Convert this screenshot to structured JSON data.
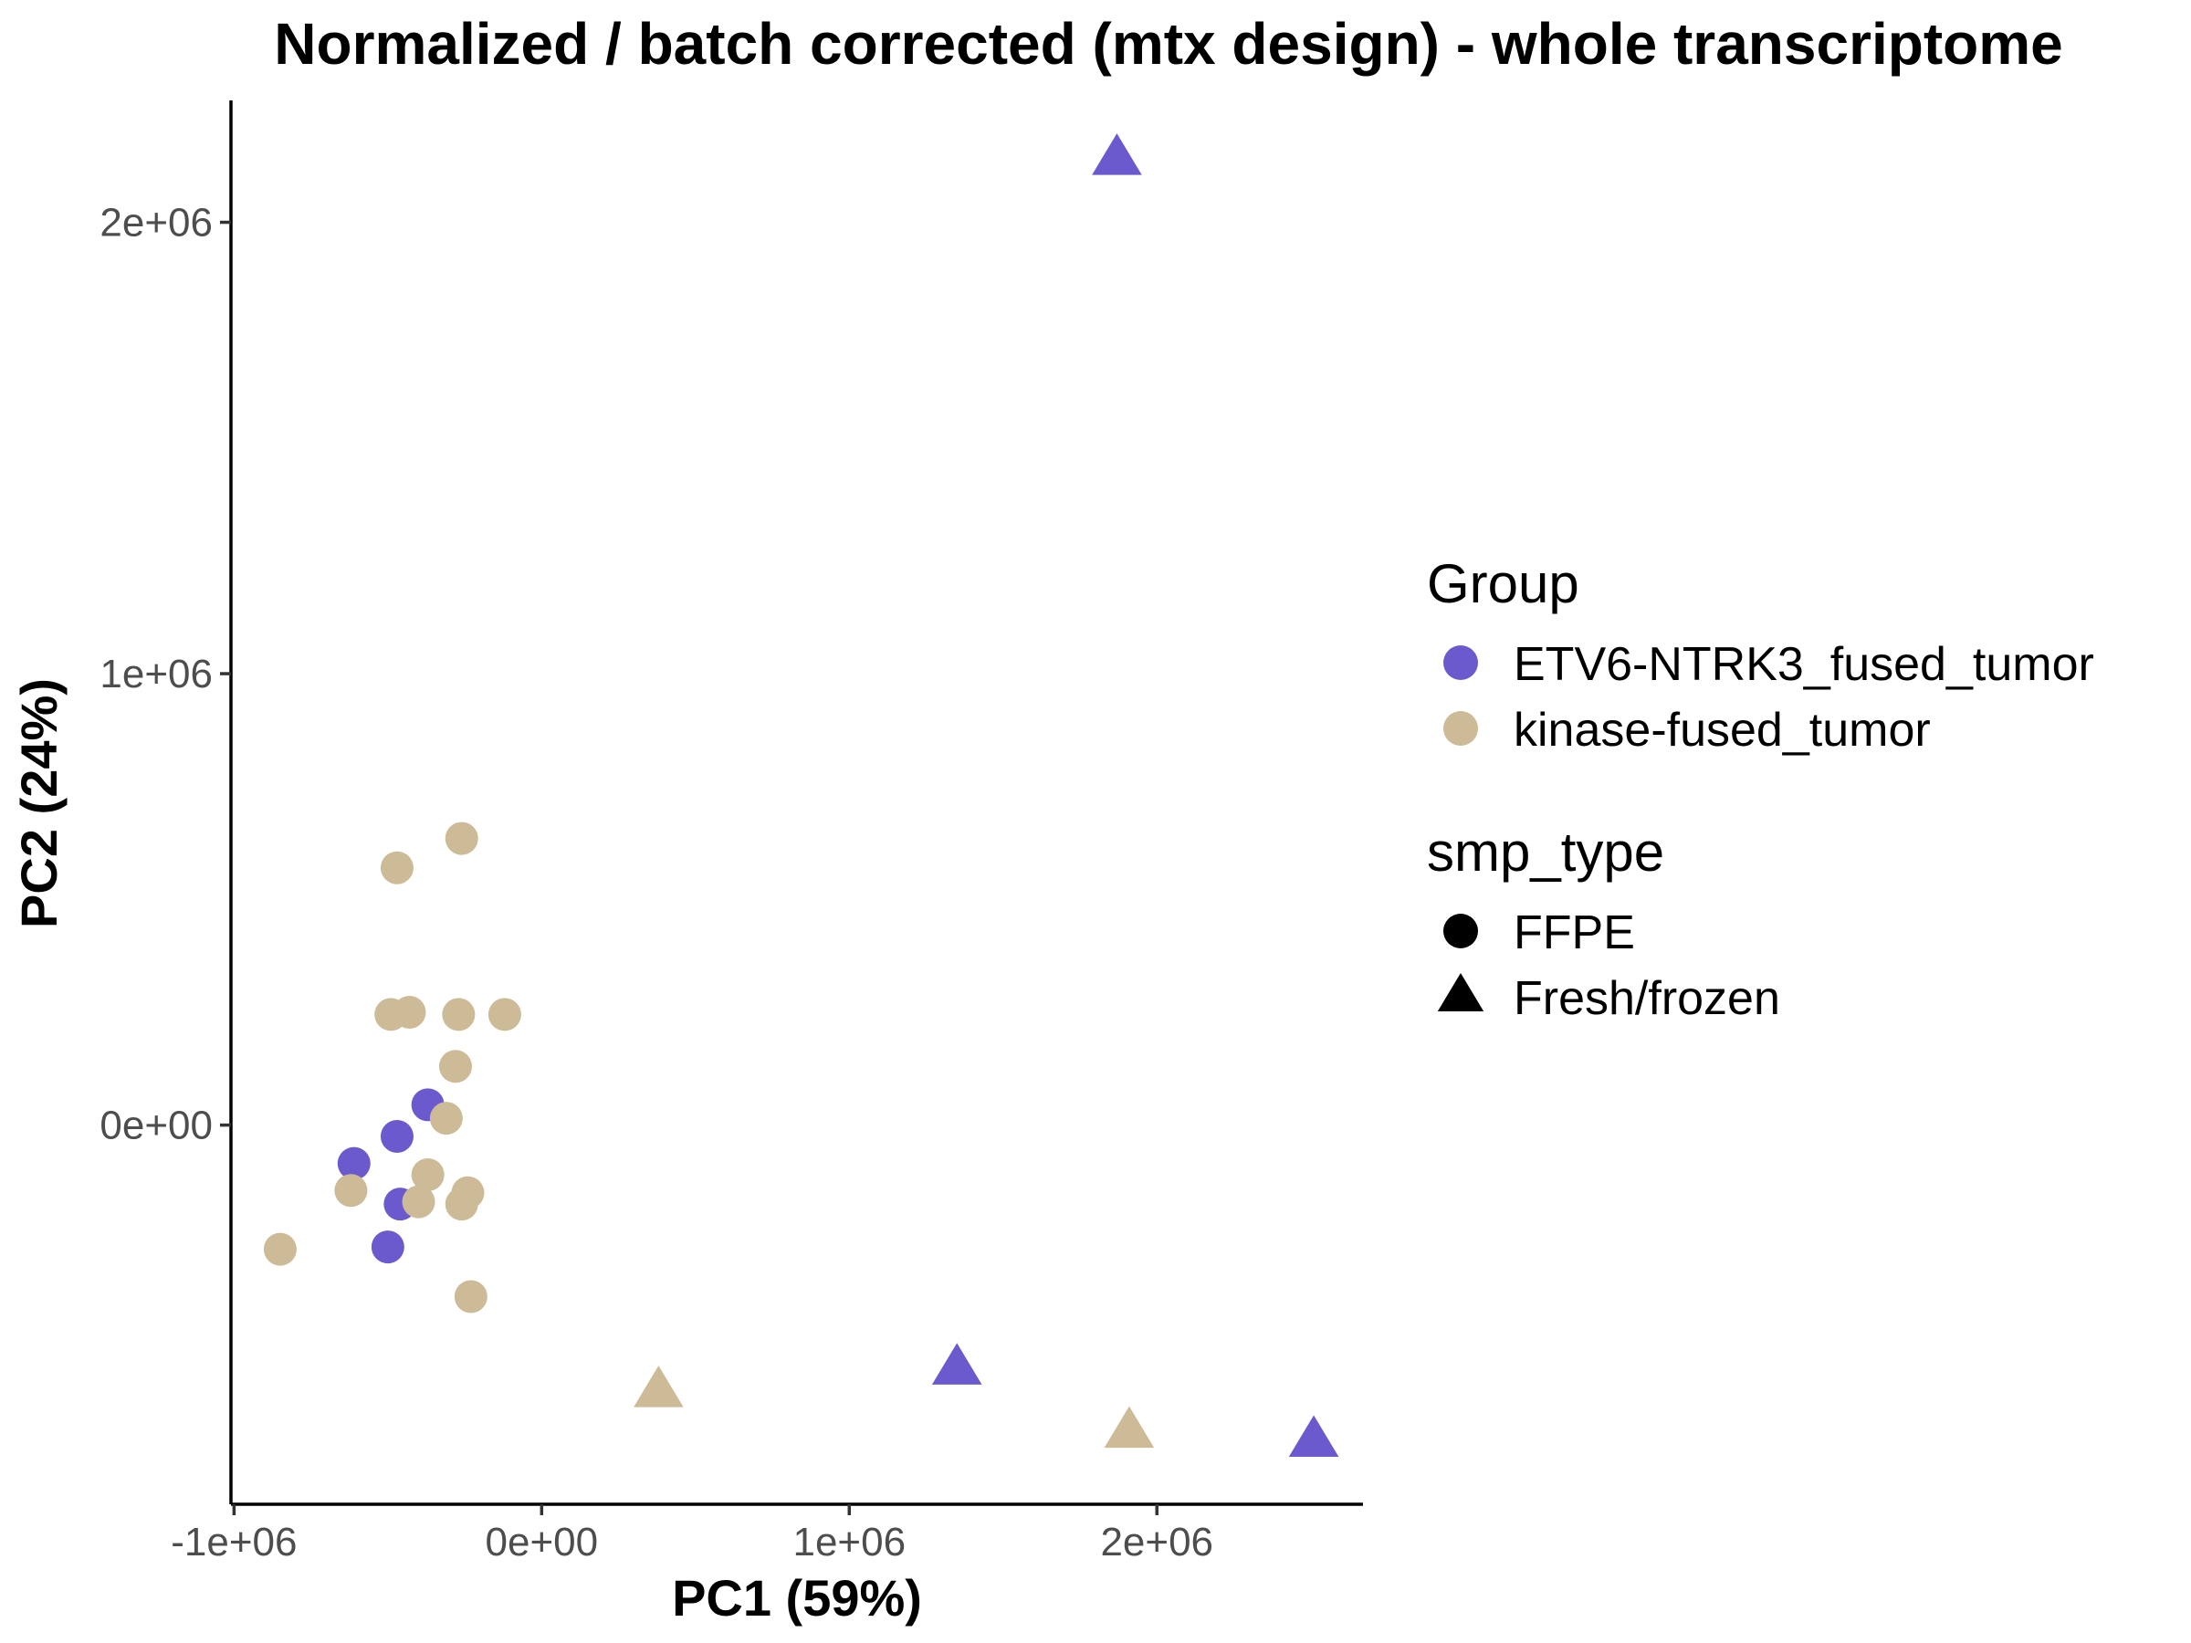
{
  "chart_data": {
    "type": "scatter",
    "title": "Normalized / batch corrected (mtx design) - whole transcriptome",
    "xlabel": "PC1 (59%)",
    "ylabel": "PC2 (24%)",
    "xlim": [
      -1010000,
      2670000
    ],
    "ylim": [
      -840000,
      2270000
    ],
    "x_ticks": [
      {
        "value": -1000000,
        "label": "-1e+06"
      },
      {
        "value": 0,
        "label": "0e+00"
      },
      {
        "value": 1000000,
        "label": "1e+06"
      },
      {
        "value": 2000000,
        "label": "2e+06"
      }
    ],
    "y_ticks": [
      {
        "value": 0,
        "label": "0e+00"
      },
      {
        "value": 1000000,
        "label": "1e+06"
      },
      {
        "value": 2000000,
        "label": "2e+06"
      }
    ],
    "grid": false,
    "legend_position": "right",
    "legends": [
      {
        "title": "Group",
        "items": [
          {
            "label": "ETV6-NTRK3_fused_tumor",
            "color": "#6a5acd",
            "shape": "circle"
          },
          {
            "label": "kinase-fused_tumor",
            "color": "#cdba96",
            "shape": "circle"
          }
        ]
      },
      {
        "title": "smp_type",
        "items": [
          {
            "label": "FFPE",
            "color": "#000000",
            "shape": "circle"
          },
          {
            "label": "Fresh/frozen",
            "color": "#000000",
            "shape": "triangle"
          }
        ]
      }
    ],
    "series": [
      {
        "group": "ETV6-NTRK3_fused_tumor",
        "smp_type": "FFPE",
        "color": "#6a5acd",
        "shape": "circle",
        "points": [
          {
            "x": -370000,
            "y": 45000
          },
          {
            "x": -470000,
            "y": -25000
          },
          {
            "x": -610000,
            "y": -85000
          },
          {
            "x": -460000,
            "y": -175000
          },
          {
            "x": -500000,
            "y": -270000
          }
        ]
      },
      {
        "group": "kinase-fused_tumor",
        "smp_type": "FFPE",
        "color": "#cdba96",
        "shape": "circle",
        "points": [
          {
            "x": -260000,
            "y": 635000
          },
          {
            "x": -470000,
            "y": 570000
          },
          {
            "x": -490000,
            "y": 245000
          },
          {
            "x": -430000,
            "y": 250000
          },
          {
            "x": -270000,
            "y": 245000
          },
          {
            "x": -120000,
            "y": 245000
          },
          {
            "x": -280000,
            "y": 130000
          },
          {
            "x": -310000,
            "y": 15000
          },
          {
            "x": -370000,
            "y": -110000
          },
          {
            "x": -620000,
            "y": -145000
          },
          {
            "x": -240000,
            "y": -150000
          },
          {
            "x": -400000,
            "y": -170000
          },
          {
            "x": -260000,
            "y": -175000
          },
          {
            "x": -850000,
            "y": -275000
          },
          {
            "x": -230000,
            "y": -380000
          }
        ]
      },
      {
        "group": "ETV6-NTRK3_fused_tumor",
        "smp_type": "Fresh/frozen",
        "color": "#6a5acd",
        "shape": "triangle",
        "points": [
          {
            "x": 1870000,
            "y": 2140000
          },
          {
            "x": 1350000,
            "y": -540000
          },
          {
            "x": 2510000,
            "y": -700000
          }
        ]
      },
      {
        "group": "kinase-fused_tumor",
        "smp_type": "Fresh/frozen",
        "color": "#cdba96",
        "shape": "triangle",
        "points": [
          {
            "x": 380000,
            "y": -590000
          },
          {
            "x": 1910000,
            "y": -680000
          }
        ]
      }
    ]
  }
}
